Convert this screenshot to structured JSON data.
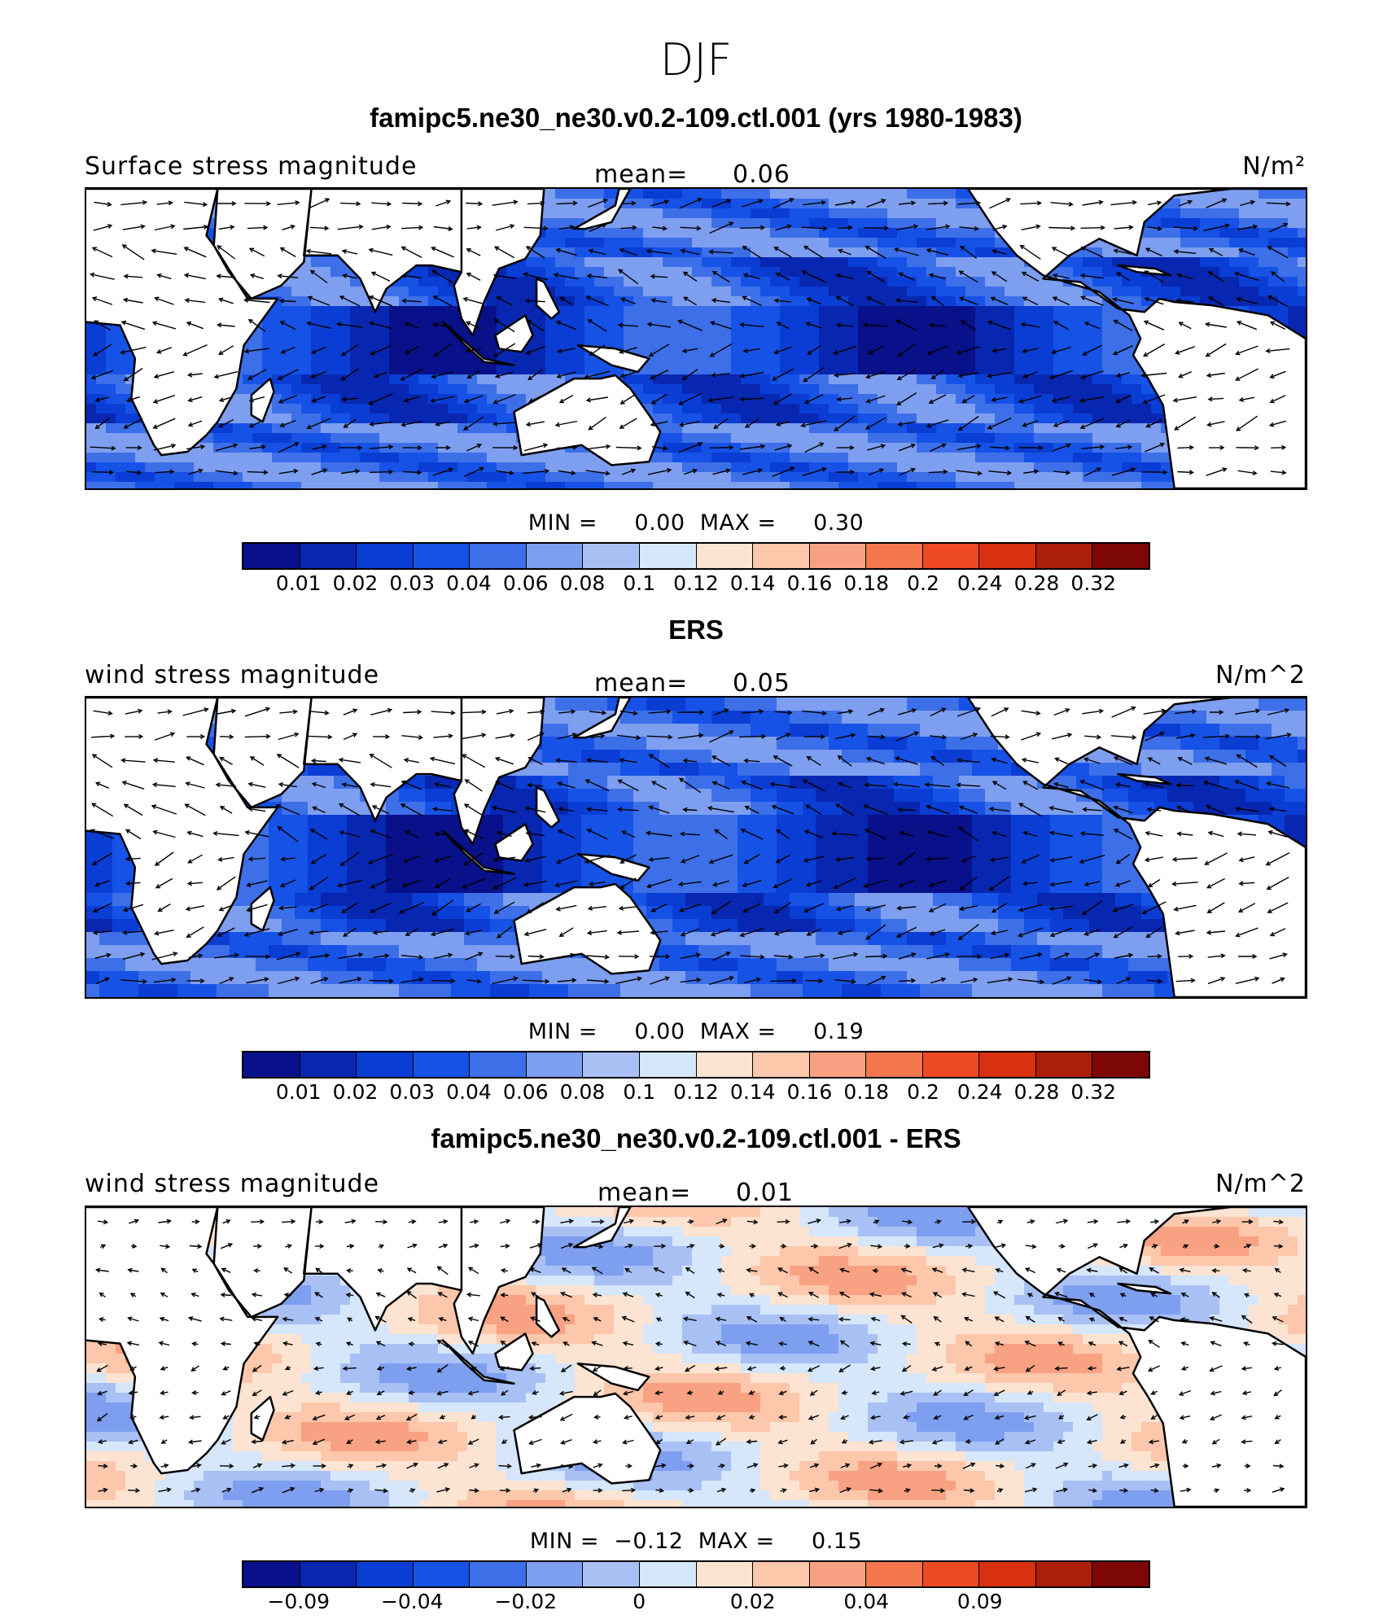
{
  "title": "DJF",
  "colors": {
    "scale": [
      "#08108a",
      "#0827b0",
      "#0a3dd4",
      "#1652e6",
      "#3d6fe8",
      "#7e9ef0",
      "#a9c0f5",
      "#d6e6fb",
      "#fde4d2",
      "#fcc7ab",
      "#f8a283",
      "#f4764f",
      "#ef4b23",
      "#d93110",
      "#ac2009",
      "#7d0606"
    ],
    "land": "#ffffff",
    "coast": "#000000",
    "vector": "#000000"
  },
  "panels": [
    {
      "title": "famipc5.ne30_ne30.v0.2-109.ctl.001 (yrs 1980-1983)",
      "left_label": "Surface stress magnitude",
      "mean_label": "mean=",
      "mean_value": "0.06",
      "units": "N/m²",
      "min_label": "MIN =",
      "min_value": "0.00",
      "max_label": "MAX =",
      "max_value": "0.30",
      "field_type": "magnitude",
      "colorbar_ticks": [
        "0.01",
        "0.02",
        "0.03",
        "0.04",
        "0.06",
        "0.08",
        "0.1",
        "0.12",
        "0.14",
        "0.16",
        "0.18",
        "0.2",
        "0.24",
        "0.28",
        "0.32"
      ]
    },
    {
      "title": "ERS",
      "left_label": "wind stress magnitude",
      "mean_label": "mean=",
      "mean_value": "0.05",
      "units": "N/m^2",
      "min_label": "MIN =",
      "min_value": "0.00",
      "max_label": "MAX =",
      "max_value": "0.19",
      "field_type": "magnitude-coarse",
      "colorbar_ticks": [
        "0.01",
        "0.02",
        "0.03",
        "0.04",
        "0.06",
        "0.08",
        "0.1",
        "0.12",
        "0.14",
        "0.16",
        "0.18",
        "0.2",
        "0.24",
        "0.28",
        "0.32"
      ]
    },
    {
      "title": "famipc5.ne30_ne30.v0.2-109.ctl.001 - ERS",
      "left_label": "wind stress magnitude",
      "mean_label": "mean=",
      "mean_value": "0.01",
      "units": "N/m^2",
      "min_label": "MIN =",
      "min_value": "−0.12",
      "max_label": "MAX =",
      "max_value": "0.15",
      "field_type": "difference",
      "colorbar_ticks": [
        "−0.09",
        "",
        "−0.04",
        "",
        "−0.02",
        "",
        "0",
        "",
        "0.02",
        "",
        "0.04",
        "",
        "0.09",
        "",
        ""
      ]
    }
  ]
}
